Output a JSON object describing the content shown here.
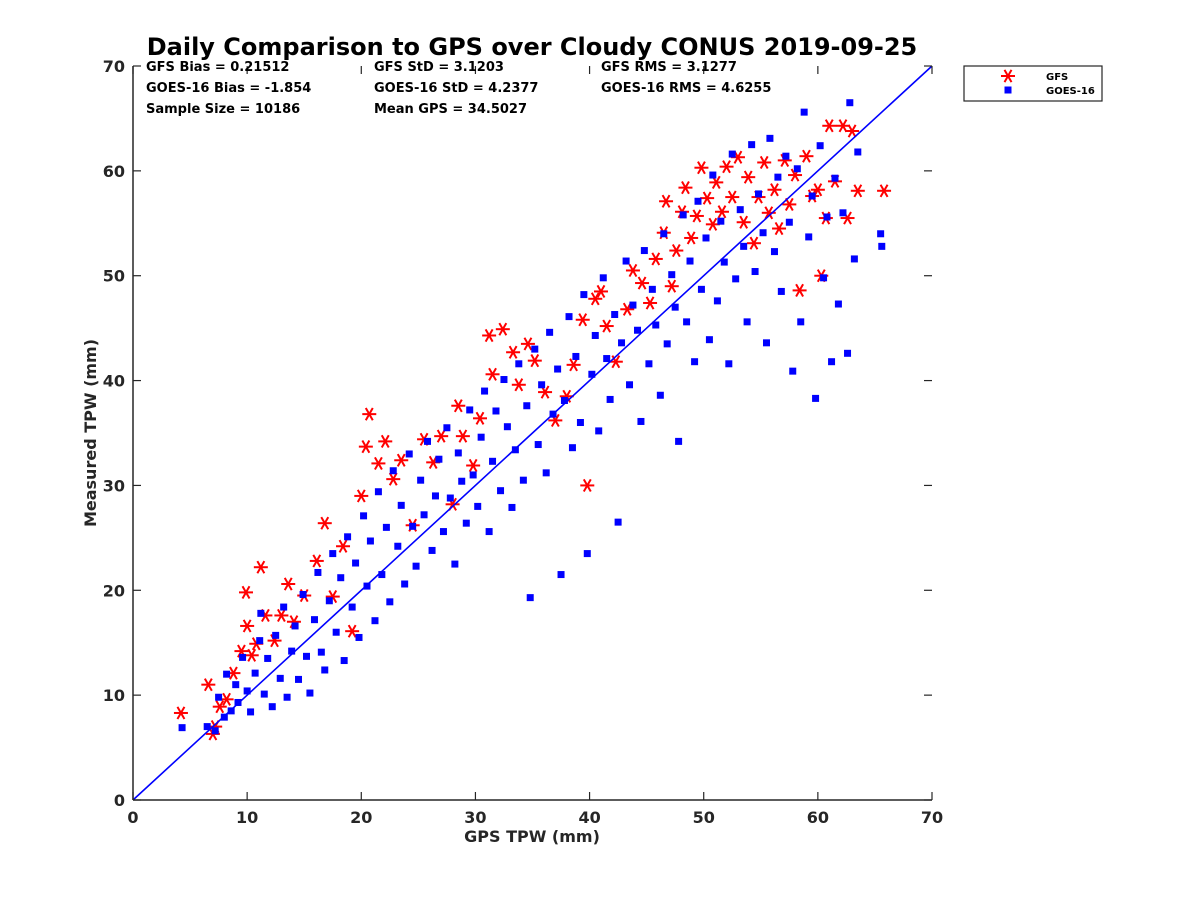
{
  "chart_data": {
    "type": "scatter",
    "title": "Daily Comparison to GPS over Cloudy CONUS 2019-09-25",
    "xlabel": "GPS TPW (mm)",
    "ylabel": "Measured TPW (mm)",
    "xlim": [
      0,
      70
    ],
    "ylim": [
      0,
      70
    ],
    "xticks": [
      "0",
      "10",
      "20",
      "30",
      "40",
      "50",
      "60",
      "70"
    ],
    "yticks": [
      "0",
      "10",
      "20",
      "30",
      "40",
      "50",
      "60",
      "70"
    ],
    "grid": false,
    "legend_position": "outside top-right",
    "reference_line": {
      "x": [
        0,
        70
      ],
      "y": [
        0,
        70
      ],
      "color": "#0000ff"
    },
    "stats": [
      [
        "GFS Bias = 0.21512",
        "GFS StD = 3.1203",
        "GFS RMS = 3.1277"
      ],
      [
        "GOES-16 Bias = -1.854",
        "GOES-16 StD = 4.2377",
        "GOES-16 RMS = 4.6255"
      ],
      [
        "Sample Size = 10186",
        "Mean GPS = 34.5027",
        ""
      ]
    ],
    "series": [
      {
        "name": "GFS",
        "marker": "asterisk",
        "color": "#ff0000",
        "points": [
          [
            4.2,
            8.3
          ],
          [
            6.6,
            11.0
          ],
          [
            7.0,
            6.3
          ],
          [
            7.2,
            7.0
          ],
          [
            7.6,
            8.9
          ],
          [
            8.2,
            9.6
          ],
          [
            8.8,
            12.1
          ],
          [
            9.5,
            14.2
          ],
          [
            9.9,
            19.8
          ],
          [
            10.0,
            16.6
          ],
          [
            10.4,
            13.8
          ],
          [
            10.8,
            14.9
          ],
          [
            11.2,
            22.2
          ],
          [
            11.6,
            17.6
          ],
          [
            12.4,
            15.2
          ],
          [
            13.0,
            17.6
          ],
          [
            13.6,
            20.6
          ],
          [
            14.1,
            17.0
          ],
          [
            15.0,
            19.5
          ],
          [
            16.1,
            22.8
          ],
          [
            16.8,
            26.4
          ],
          [
            17.5,
            19.4
          ],
          [
            18.4,
            24.2
          ],
          [
            19.2,
            16.1
          ],
          [
            20.0,
            29.0
          ],
          [
            20.4,
            33.7
          ],
          [
            20.7,
            36.8
          ],
          [
            21.5,
            32.1
          ],
          [
            22.1,
            34.2
          ],
          [
            22.8,
            30.6
          ],
          [
            23.5,
            32.4
          ],
          [
            24.5,
            26.2
          ],
          [
            25.5,
            34.4
          ],
          [
            26.3,
            32.2
          ],
          [
            27.0,
            34.7
          ],
          [
            28.0,
            28.2
          ],
          [
            28.5,
            37.6
          ],
          [
            28.9,
            34.7
          ],
          [
            29.8,
            31.9
          ],
          [
            30.4,
            36.4
          ],
          [
            31.2,
            44.3
          ],
          [
            31.5,
            40.6
          ],
          [
            32.4,
            44.9
          ],
          [
            33.3,
            42.7
          ],
          [
            33.8,
            39.6
          ],
          [
            34.6,
            43.5
          ],
          [
            35.2,
            41.9
          ],
          [
            36.1,
            38.9
          ],
          [
            37.0,
            36.2
          ],
          [
            38.0,
            38.5
          ],
          [
            38.6,
            41.5
          ],
          [
            39.4,
            45.8
          ],
          [
            39.8,
            30.0
          ],
          [
            40.5,
            47.8
          ],
          [
            41.0,
            48.5
          ],
          [
            41.5,
            45.2
          ],
          [
            42.3,
            41.8
          ],
          [
            43.3,
            46.8
          ],
          [
            43.8,
            50.5
          ],
          [
            44.6,
            49.3
          ],
          [
            45.3,
            47.4
          ],
          [
            45.8,
            51.6
          ],
          [
            46.5,
            54.1
          ],
          [
            46.7,
            57.1
          ],
          [
            47.2,
            49.0
          ],
          [
            47.6,
            52.4
          ],
          [
            48.1,
            56.1
          ],
          [
            48.4,
            58.4
          ],
          [
            48.9,
            53.6
          ],
          [
            49.4,
            55.7
          ],
          [
            49.8,
            60.3
          ],
          [
            50.3,
            57.4
          ],
          [
            50.8,
            54.9
          ],
          [
            51.1,
            58.9
          ],
          [
            51.6,
            56.1
          ],
          [
            52.0,
            60.4
          ],
          [
            52.5,
            57.5
          ],
          [
            53.0,
            61.3
          ],
          [
            53.5,
            55.1
          ],
          [
            53.9,
            59.4
          ],
          [
            54.4,
            53.1
          ],
          [
            54.8,
            57.5
          ],
          [
            55.3,
            60.8
          ],
          [
            55.7,
            56.0
          ],
          [
            56.2,
            58.2
          ],
          [
            56.6,
            54.5
          ],
          [
            57.1,
            61.0
          ],
          [
            57.5,
            56.8
          ],
          [
            58.0,
            59.6
          ],
          [
            58.4,
            48.6
          ],
          [
            59.0,
            61.4
          ],
          [
            59.5,
            57.6
          ],
          [
            60.0,
            58.2
          ],
          [
            60.3,
            50.0
          ],
          [
            60.7,
            55.5
          ],
          [
            61.0,
            64.3
          ],
          [
            61.5,
            59.0
          ],
          [
            62.2,
            64.3
          ],
          [
            62.6,
            55.5
          ],
          [
            63.0,
            63.8
          ],
          [
            63.5,
            58.1
          ],
          [
            65.8,
            58.1
          ]
        ]
      },
      {
        "name": "GOES-16",
        "marker": "square",
        "color": "#0000ff",
        "points": [
          [
            4.3,
            6.9
          ],
          [
            6.5,
            7.0
          ],
          [
            7.2,
            6.6
          ],
          [
            7.5,
            9.8
          ],
          [
            8.0,
            7.9
          ],
          [
            8.2,
            12.0
          ],
          [
            8.6,
            8.5
          ],
          [
            9.0,
            11.0
          ],
          [
            9.2,
            9.3
          ],
          [
            9.6,
            13.6
          ],
          [
            10.0,
            10.4
          ],
          [
            10.3,
            8.4
          ],
          [
            10.7,
            12.1
          ],
          [
            11.1,
            15.2
          ],
          [
            11.2,
            17.8
          ],
          [
            11.5,
            10.1
          ],
          [
            11.8,
            13.5
          ],
          [
            12.2,
            8.9
          ],
          [
            12.5,
            15.7
          ],
          [
            12.9,
            11.6
          ],
          [
            13.2,
            18.4
          ],
          [
            13.5,
            9.8
          ],
          [
            13.9,
            14.2
          ],
          [
            14.2,
            16.6
          ],
          [
            14.5,
            11.5
          ],
          [
            14.9,
            19.6
          ],
          [
            15.2,
            13.7
          ],
          [
            15.5,
            10.2
          ],
          [
            15.9,
            17.2
          ],
          [
            16.2,
            21.7
          ],
          [
            16.5,
            14.1
          ],
          [
            16.8,
            12.4
          ],
          [
            17.2,
            19.0
          ],
          [
            17.5,
            23.5
          ],
          [
            17.8,
            16.0
          ],
          [
            18.2,
            21.2
          ],
          [
            18.5,
            13.3
          ],
          [
            18.8,
            25.1
          ],
          [
            19.2,
            18.4
          ],
          [
            19.5,
            22.6
          ],
          [
            19.8,
            15.5
          ],
          [
            20.2,
            27.1
          ],
          [
            20.5,
            20.4
          ],
          [
            20.8,
            24.7
          ],
          [
            21.2,
            17.1
          ],
          [
            21.5,
            29.4
          ],
          [
            21.8,
            21.5
          ],
          [
            22.2,
            26.0
          ],
          [
            22.5,
            18.9
          ],
          [
            22.8,
            31.4
          ],
          [
            23.2,
            24.2
          ],
          [
            23.5,
            28.1
          ],
          [
            23.8,
            20.6
          ],
          [
            24.2,
            33.0
          ],
          [
            24.5,
            26.1
          ],
          [
            24.8,
            22.3
          ],
          [
            25.2,
            30.5
          ],
          [
            25.5,
            27.2
          ],
          [
            25.8,
            34.2
          ],
          [
            26.2,
            23.8
          ],
          [
            26.5,
            29.0
          ],
          [
            26.8,
            32.5
          ],
          [
            27.2,
            25.6
          ],
          [
            27.5,
            35.5
          ],
          [
            27.8,
            28.8
          ],
          [
            28.2,
            22.5
          ],
          [
            28.5,
            33.1
          ],
          [
            28.8,
            30.4
          ],
          [
            29.2,
            26.4
          ],
          [
            29.5,
            37.2
          ],
          [
            29.8,
            31.0
          ],
          [
            30.2,
            28.0
          ],
          [
            30.5,
            34.6
          ],
          [
            30.8,
            39.0
          ],
          [
            31.2,
            25.6
          ],
          [
            31.5,
            32.3
          ],
          [
            31.8,
            37.1
          ],
          [
            32.2,
            29.5
          ],
          [
            32.5,
            40.1
          ],
          [
            32.8,
            35.6
          ],
          [
            33.2,
            27.9
          ],
          [
            33.5,
            33.4
          ],
          [
            33.8,
            41.6
          ],
          [
            34.2,
            30.5
          ],
          [
            34.5,
            37.6
          ],
          [
            34.8,
            19.3
          ],
          [
            35.2,
            43.0
          ],
          [
            35.5,
            33.9
          ],
          [
            35.8,
            39.6
          ],
          [
            36.2,
            31.2
          ],
          [
            36.5,
            44.6
          ],
          [
            36.8,
            36.8
          ],
          [
            37.2,
            41.1
          ],
          [
            37.5,
            21.5
          ],
          [
            37.8,
            38.1
          ],
          [
            38.2,
            46.1
          ],
          [
            38.5,
            33.6
          ],
          [
            38.8,
            42.3
          ],
          [
            39.2,
            36.0
          ],
          [
            39.5,
            48.2
          ],
          [
            39.8,
            23.5
          ],
          [
            40.2,
            40.6
          ],
          [
            40.5,
            44.3
          ],
          [
            40.8,
            35.2
          ],
          [
            41.2,
            49.8
          ],
          [
            41.5,
            42.1
          ],
          [
            41.8,
            38.2
          ],
          [
            42.2,
            46.3
          ],
          [
            42.5,
            26.5
          ],
          [
            42.8,
            43.6
          ],
          [
            43.2,
            51.4
          ],
          [
            43.5,
            39.6
          ],
          [
            43.8,
            47.2
          ],
          [
            44.2,
            44.8
          ],
          [
            44.5,
            36.1
          ],
          [
            44.8,
            52.4
          ],
          [
            45.2,
            41.6
          ],
          [
            45.5,
            48.7
          ],
          [
            45.8,
            45.3
          ],
          [
            46.2,
            38.6
          ],
          [
            46.5,
            54.0
          ],
          [
            46.8,
            43.5
          ],
          [
            47.2,
            50.1
          ],
          [
            47.5,
            47.0
          ],
          [
            47.8,
            34.2
          ],
          [
            48.2,
            55.8
          ],
          [
            48.5,
            45.6
          ],
          [
            48.8,
            51.4
          ],
          [
            49.2,
            41.8
          ],
          [
            49.5,
            57.1
          ],
          [
            49.8,
            48.7
          ],
          [
            50.2,
            53.6
          ],
          [
            50.5,
            43.9
          ],
          [
            50.8,
            59.6
          ],
          [
            51.2,
            47.6
          ],
          [
            51.5,
            55.2
          ],
          [
            51.8,
            51.3
          ],
          [
            52.2,
            41.6
          ],
          [
            52.5,
            61.6
          ],
          [
            52.8,
            49.7
          ],
          [
            53.2,
            56.3
          ],
          [
            53.5,
            52.8
          ],
          [
            53.8,
            45.6
          ],
          [
            54.2,
            62.5
          ],
          [
            54.5,
            50.4
          ],
          [
            54.8,
            57.8
          ],
          [
            55.2,
            54.1
          ],
          [
            55.5,
            43.6
          ],
          [
            55.8,
            63.1
          ],
          [
            56.2,
            52.3
          ],
          [
            56.5,
            59.4
          ],
          [
            56.8,
            48.5
          ],
          [
            57.2,
            61.4
          ],
          [
            57.5,
            55.1
          ],
          [
            57.8,
            40.9
          ],
          [
            58.2,
            60.2
          ],
          [
            58.5,
            45.6
          ],
          [
            58.8,
            65.6
          ],
          [
            59.2,
            53.7
          ],
          [
            59.5,
            57.6
          ],
          [
            59.8,
            38.3
          ],
          [
            60.2,
            62.4
          ],
          [
            60.5,
            49.8
          ],
          [
            60.8,
            55.6
          ],
          [
            61.2,
            41.8
          ],
          [
            61.5,
            59.3
          ],
          [
            61.8,
            47.3
          ],
          [
            62.2,
            56.0
          ],
          [
            62.6,
            42.6
          ],
          [
            62.8,
            66.5
          ],
          [
            63.2,
            51.6
          ],
          [
            63.5,
            61.8
          ],
          [
            65.5,
            54.0
          ],
          [
            65.6,
            52.8
          ]
        ]
      }
    ]
  }
}
